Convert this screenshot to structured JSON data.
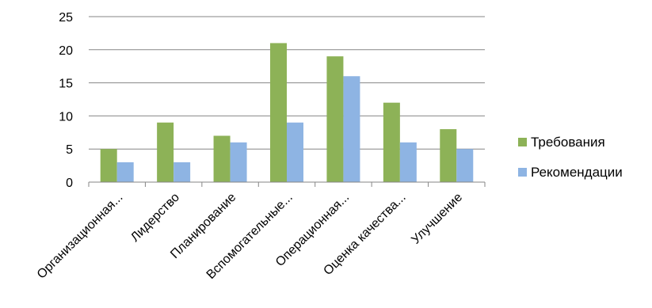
{
  "chart_data": {
    "type": "bar",
    "categories": [
      "Организационная...",
      "Лидерство",
      "Планирование",
      "Вспомогательные...",
      "Операционная...",
      "Оценка качества...",
      "Улучшение"
    ],
    "series": [
      {
        "name": "Требования",
        "color": "#8db257",
        "values": [
          5,
          9,
          7,
          21,
          19,
          12,
          8
        ]
      },
      {
        "name": "Рекомендации",
        "color": "#8eb4e3",
        "values": [
          3,
          3,
          6,
          9,
          16,
          6,
          5
        ]
      }
    ],
    "ylim": [
      0,
      25
    ],
    "yticks": [
      0,
      5,
      10,
      15,
      20,
      25
    ],
    "grid": true,
    "legend": "right"
  }
}
